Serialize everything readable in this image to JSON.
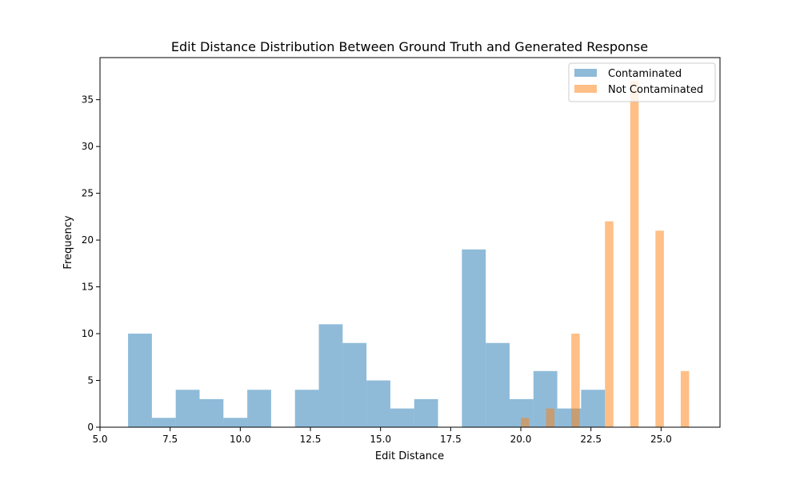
{
  "chart_data": {
    "type": "bar",
    "title": "Edit Distance Distribution Between Ground Truth and Generated Response",
    "xlabel": "Edit Distance",
    "ylabel": "Frequency",
    "xlim": [
      5.0,
      27.1
    ],
    "ylim": [
      0,
      39.5
    ],
    "xticks": [
      "5.0",
      "7.5",
      "10.0",
      "12.5",
      "15.0",
      "17.5",
      "20.0",
      "22.5",
      "25.0"
    ],
    "xtick_values": [
      5.0,
      7.5,
      10.0,
      12.5,
      15.0,
      17.5,
      20.0,
      22.5,
      25.0
    ],
    "yticks": [
      "0",
      "5",
      "10",
      "15",
      "20",
      "25",
      "30",
      "35"
    ],
    "ytick_values": [
      0,
      5,
      10,
      15,
      20,
      25,
      30,
      35
    ],
    "legend_position": "top-right",
    "grid": false,
    "series": [
      {
        "name": "Contaminated",
        "color": "#1f77b4",
        "opacity": 0.5,
        "bins": [
          {
            "x0": 6.0,
            "x1": 6.85,
            "value": 10
          },
          {
            "x0": 6.85,
            "x1": 7.7,
            "value": 1
          },
          {
            "x0": 7.7,
            "x1": 8.55,
            "value": 4
          },
          {
            "x0": 8.55,
            "x1": 9.4,
            "value": 3
          },
          {
            "x0": 9.4,
            "x1": 10.25,
            "value": 1
          },
          {
            "x0": 10.25,
            "x1": 11.1,
            "value": 4
          },
          {
            "x0": 11.95,
            "x1": 12.8,
            "value": 4
          },
          {
            "x0": 12.8,
            "x1": 13.65,
            "value": 11
          },
          {
            "x0": 13.65,
            "x1": 14.5,
            "value": 9
          },
          {
            "x0": 14.5,
            "x1": 15.35,
            "value": 5
          },
          {
            "x0": 15.35,
            "x1": 16.2,
            "value": 2
          },
          {
            "x0": 16.2,
            "x1": 17.05,
            "value": 3
          },
          {
            "x0": 17.9,
            "x1": 18.75,
            "value": 19
          },
          {
            "x0": 18.75,
            "x1": 19.6,
            "value": 9
          },
          {
            "x0": 19.6,
            "x1": 20.45,
            "value": 3
          },
          {
            "x0": 20.45,
            "x1": 21.3,
            "value": 6
          },
          {
            "x0": 21.3,
            "x1": 22.15,
            "value": 2
          },
          {
            "x0": 22.15,
            "x1": 23.0,
            "value": 4
          }
        ]
      },
      {
        "name": "Not Contaminated",
        "color": "#ff7f0e",
        "opacity": 0.5,
        "bins": [
          {
            "x0": 20.0,
            "x1": 20.3,
            "value": 1
          },
          {
            "x0": 20.9,
            "x1": 21.2,
            "value": 2
          },
          {
            "x0": 21.8,
            "x1": 22.1,
            "value": 10
          },
          {
            "x0": 23.0,
            "x1": 23.3,
            "value": 22
          },
          {
            "x0": 23.9,
            "x1": 24.2,
            "value": 37
          },
          {
            "x0": 24.8,
            "x1": 25.1,
            "value": 21
          },
          {
            "x0": 25.7,
            "x1": 26.0,
            "value": 6
          }
        ]
      }
    ]
  }
}
